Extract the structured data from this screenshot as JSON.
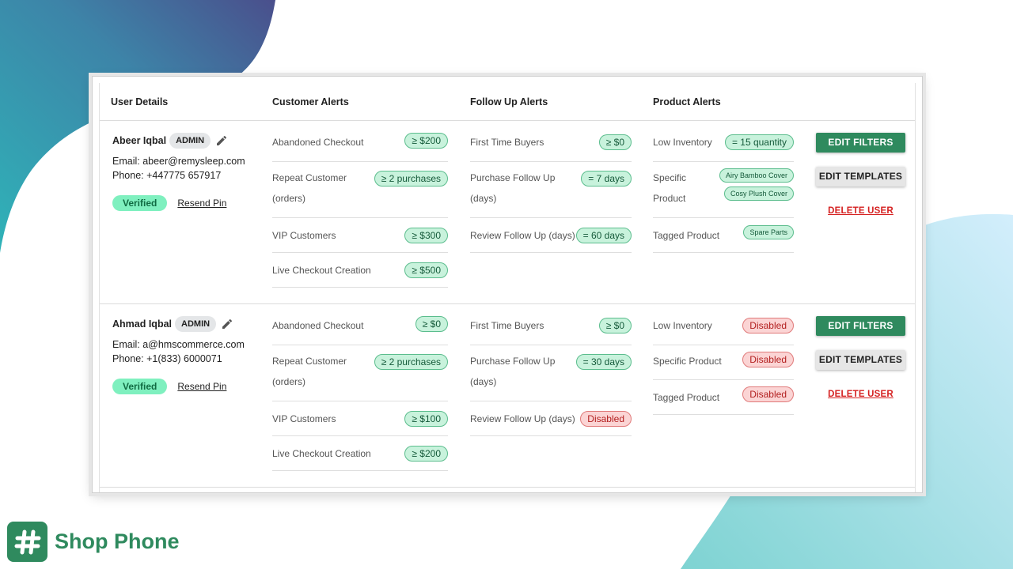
{
  "colors": {
    "brand": "#2f8a5e",
    "chip_green": "#c8f2dc",
    "chip_red": "#fbd4d4",
    "verified": "#7ff0bf"
  },
  "columns": {
    "user_details": "User Details",
    "customer_alerts": "Customer Alerts",
    "follow_up_alerts": "Follow Up Alerts",
    "product_alerts": "Product Alerts"
  },
  "users": [
    {
      "name": "Abeer Iqbal",
      "role": "ADMIN",
      "email": "Email: abeer@remysleep.com",
      "phone": "Phone: +447775 657917",
      "status": "Verified",
      "resend": "Resend Pin",
      "customer_alerts": [
        {
          "label": "Abandoned Checkout",
          "value": "≥ $200"
        },
        {
          "label": "Repeat Customer",
          "label2": "(orders)",
          "value": "≥ 2 purchases"
        },
        {
          "label": "VIP Customers",
          "value": "≥ $300"
        },
        {
          "label": "Live Checkout Creation",
          "value": "≥ $500"
        }
      ],
      "follow_up_alerts": [
        {
          "label": "First Time Buyers",
          "value": "≥ $0"
        },
        {
          "label": "Purchase Follow Up",
          "label2": "(days)",
          "value": "= 7 days"
        },
        {
          "label": "Review Follow Up (days)",
          "value": "= 60 days"
        }
      ],
      "product_alerts": [
        {
          "label": "Low Inventory",
          "value": "= 15 quantity"
        },
        {
          "label": "Specific",
          "label2": "Product",
          "value": "Airy Bamboo Cover",
          "value2": "Cosy Plush Cover"
        },
        {
          "label": "Tagged Product",
          "value": "Spare Parts"
        }
      ],
      "buttons": {
        "edit_filters": "EDIT FILTERS",
        "edit_templates": "EDIT TEMPLATES",
        "delete_user": "DELETE USER"
      }
    },
    {
      "name": "Ahmad Iqbal",
      "role": "ADMIN",
      "email": "Email: a@hmscommerce.com",
      "phone": "Phone: +1(833) 6000071",
      "status": "Verified",
      "resend": "Resend Pin",
      "customer_alerts": [
        {
          "label": "Abandoned Checkout",
          "value": "≥ $0"
        },
        {
          "label": "Repeat Customer",
          "label2": "(orders)",
          "value": "≥ 2 purchases"
        },
        {
          "label": "VIP Customers",
          "value": "≥ $100"
        },
        {
          "label": "Live Checkout Creation",
          "value": "≥ $200"
        }
      ],
      "follow_up_alerts": [
        {
          "label": "First Time Buyers",
          "value": "≥ $0"
        },
        {
          "label": "Purchase Follow Up",
          "label2": "(days)",
          "value": "= 30 days"
        },
        {
          "label": "Review Follow Up (days)",
          "value": "Disabled"
        }
      ],
      "product_alerts": [
        {
          "label": "Low Inventory",
          "value": "Disabled"
        },
        {
          "label": "Specific Product",
          "value": "Disabled"
        },
        {
          "label": "Tagged Product",
          "value": "Disabled"
        }
      ],
      "buttons": {
        "edit_filters": "EDIT FILTERS",
        "edit_templates": "EDIT TEMPLATES",
        "delete_user": "DELETE USER"
      }
    }
  ],
  "brand": {
    "name": "Shop Phone",
    "logo_icon": "hash-icon"
  }
}
